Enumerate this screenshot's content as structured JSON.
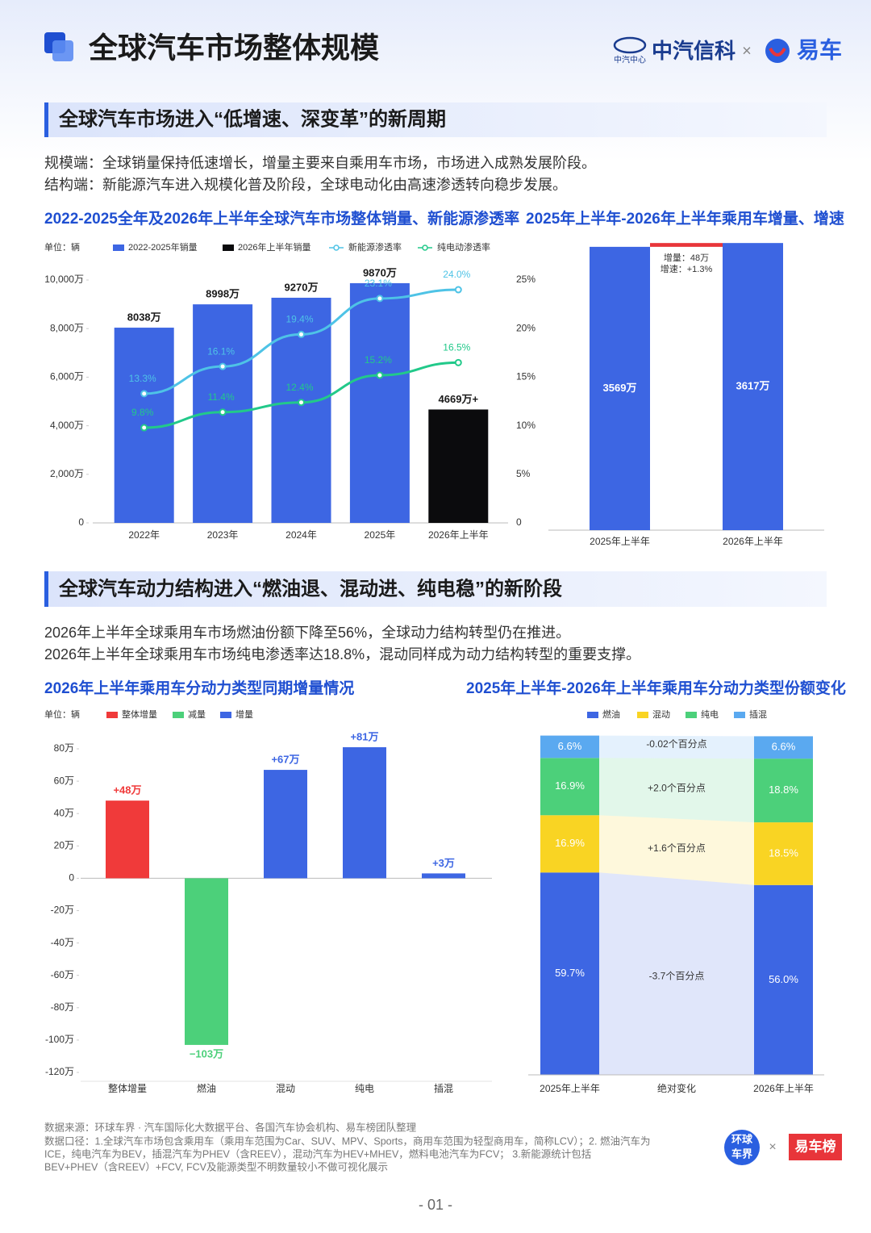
{
  "header": {
    "title": "全球汽车市场整体规模",
    "partner1_sub": "中汽中心",
    "partner1": "中汽信科",
    "times": "×",
    "partner2": "易车"
  },
  "section1": {
    "heading": "全球汽车市场进入“低增速、深变革”的新周期",
    "lines": [
      "规模端：全球销量保持低速增长，增量主要来自乘用车市场，市场进入成熟发展阶段。",
      "结构端：新能源汽车进入规模化普及阶段，全球电动化由高速渗透转向稳步发展。"
    ]
  },
  "section2": {
    "heading": "全球汽车动力结构进入“燃油退、混动进、纯电稳”的新阶段",
    "lines": [
      "2026年上半年全球乘用车市场燃油份额下降至56%，全球动力结构转型仍在推进。",
      "2026年上半年全球乘用车市场纯电渗透率达18.8%，混动同样成为动力结构转型的重要支撑。"
    ]
  },
  "chart_data": [
    {
      "type": "bar",
      "title": "2022-2025全年及2026年上半年全球汽车市场整体销量、新能源渗透率",
      "unit": "单位：辆",
      "categories": [
        "2022年",
        "2023年",
        "2024年",
        "2025年",
        "2026年上半年"
      ],
      "series": [
        {
          "name": "2022-2025年销量",
          "type": "bar",
          "color": "#3d66e3",
          "values": [
            8038,
            8998,
            9270,
            9870,
            null
          ],
          "value_labels": [
            "8038万",
            "8998万",
            "9270万",
            "9870万",
            null
          ]
        },
        {
          "name": "2026年上半年销量",
          "type": "bar",
          "color": "#0b0b0d",
          "values": [
            null,
            null,
            null,
            null,
            4669
          ],
          "value_labels": [
            null,
            null,
            null,
            null,
            "4669万+"
          ]
        },
        {
          "name": "新能源渗透率",
          "type": "line",
          "axis": "y2",
          "color": "#4ec3e6",
          "values": [
            13.3,
            16.1,
            19.4,
            23.1,
            24.0
          ],
          "value_labels": [
            "13.3%",
            "16.1%",
            "19.4%",
            "23.1%",
            "24.0%"
          ]
        },
        {
          "name": "纯电动渗透率",
          "type": "line",
          "axis": "y2",
          "color": "#22c98a",
          "values": [
            9.8,
            11.4,
            12.4,
            15.2,
            16.5
          ],
          "value_labels": [
            "9.8%",
            "11.4%",
            "12.4%",
            "15.2%",
            "16.5%"
          ]
        }
      ],
      "ylim": [
        0,
        10000
      ],
      "yticks": [
        0,
        {
          "value": 2000,
          "label": "2,000万"
        },
        {
          "value": 4000,
          "label": "4,000万"
        },
        {
          "value": 6000,
          "label": "6,000万"
        },
        {
          "value": 8000,
          "label": "8,000万"
        },
        {
          "value": 10000,
          "label": "10,000万"
        }
      ],
      "y2lim": [
        0,
        25
      ],
      "y2ticks": [
        0,
        {
          "value": 5,
          "label": "5%"
        },
        {
          "value": 10,
          "label": "10%"
        },
        {
          "value": 15,
          "label": "15%"
        },
        {
          "value": 20,
          "label": "20%"
        },
        {
          "value": 25,
          "label": "25%"
        }
      ]
    },
    {
      "type": "bar",
      "title": "2025年上半年-2026年上半年乘用车增量、增速",
      "categories": [
        "2025年上半年",
        "2026年上半年"
      ],
      "values": [
        3569,
        3617
      ],
      "value_labels": [
        "3569万",
        "3617万"
      ],
      "color": "#3d66e3",
      "increment": 48,
      "increment_color": "#e8353a",
      "annotations": [
        "增量：48万",
        "增速：+1.3%"
      ],
      "ylim": [
        0,
        3700
      ]
    },
    {
      "type": "bar",
      "title": "2026年上半年乘用车分动力类型同期增量情况",
      "unit": "单位：辆",
      "categories": [
        "整体增量",
        "燃油",
        "混动",
        "纯电",
        "插混"
      ],
      "series": [
        {
          "name": "整体增量",
          "type": "bar",
          "color": "#f03a3a",
          "values": [
            48,
            null,
            null,
            null,
            null
          ],
          "value_labels": [
            "+48万",
            null,
            null,
            null,
            null
          ]
        },
        {
          "name": "减量",
          "type": "bar",
          "color": "#4cd07a",
          "values": [
            null,
            -103,
            null,
            null,
            null
          ],
          "value_labels": [
            null,
            "−103万",
            null,
            null,
            null
          ]
        },
        {
          "name": "增量",
          "type": "bar",
          "color": "#3d66e3",
          "values": [
            null,
            null,
            67,
            81,
            3
          ],
          "value_labels": [
            null,
            null,
            "+67万",
            "+81万",
            "+3万"
          ]
        }
      ],
      "ylim": [
        -120,
        80
      ],
      "yticks": [
        {
          "value": -120,
          "label": "-120万"
        },
        {
          "value": -100,
          "label": "-100万"
        },
        {
          "value": -80,
          "label": "-80万"
        },
        {
          "value": -60,
          "label": "-60万"
        },
        {
          "value": -40,
          "label": "-40万"
        },
        {
          "value": -20,
          "label": "-20万"
        },
        0,
        {
          "value": 20,
          "label": "20万"
        },
        {
          "value": 40,
          "label": "40万"
        },
        {
          "value": 60,
          "label": "60万"
        },
        {
          "value": 80,
          "label": "80万"
        }
      ]
    },
    {
      "type": "stacked_bar",
      "title": "2025年上半年-2026年上半年乘用车分动力类型份额变化",
      "categories": [
        "2025年上半年",
        "2026年上半年"
      ],
      "change_title": "绝对变化",
      "series": [
        {
          "name": "燃油",
          "color": "#3d66e3",
          "values": [
            59.7,
            56.0
          ],
          "value_labels": [
            "59.7%",
            "56.0%"
          ],
          "change_label": "-3.7个百分点"
        },
        {
          "name": "混动",
          "color": "#f9d423",
          "values": [
            16.9,
            18.5
          ],
          "value_labels": [
            "16.9%",
            "18.5%"
          ],
          "change_label": "+1.6个百分点"
        },
        {
          "name": "纯电",
          "color": "#4cd07a",
          "values": [
            16.9,
            18.8
          ],
          "value_labels": [
            "16.9%",
            "18.8%"
          ],
          "change_label": "+2.0个百分点"
        },
        {
          "name": "插混",
          "color": "#5aa9f0",
          "values": [
            6.6,
            6.6
          ],
          "value_labels": [
            "6.6%",
            "6.6%"
          ],
          "change_label": "-0.02个百分点"
        }
      ],
      "ylim": [
        0,
        100
      ]
    }
  ],
  "footer": {
    "source": "数据来源：环球车界 · 汽车国际化大数据平台、各国汽车协会机构、易车榜团队整理",
    "notes": [
      "数据口径：1.全球汽车市场包含乘用车（乘用车范围为Car、SUV、MPV、Sports，商用车范围为轻型商用车，简称LCV）；2. 燃油汽车为",
      "ICE，纯电汽车为BEV，插混汽车为PHEV（含REEV），混动汽车为HEV+MHEV，燃料电池汽车为FCV； 3.新能源统计包括",
      "BEV+PHEV（含REEV）+FCV, FCV及能源类型不明数量较小不做可视化展示"
    ],
    "logo1_lines": [
      "环球",
      "车界"
    ],
    "times": "×",
    "logo2": "易车榜",
    "page": "- 01 -"
  }
}
